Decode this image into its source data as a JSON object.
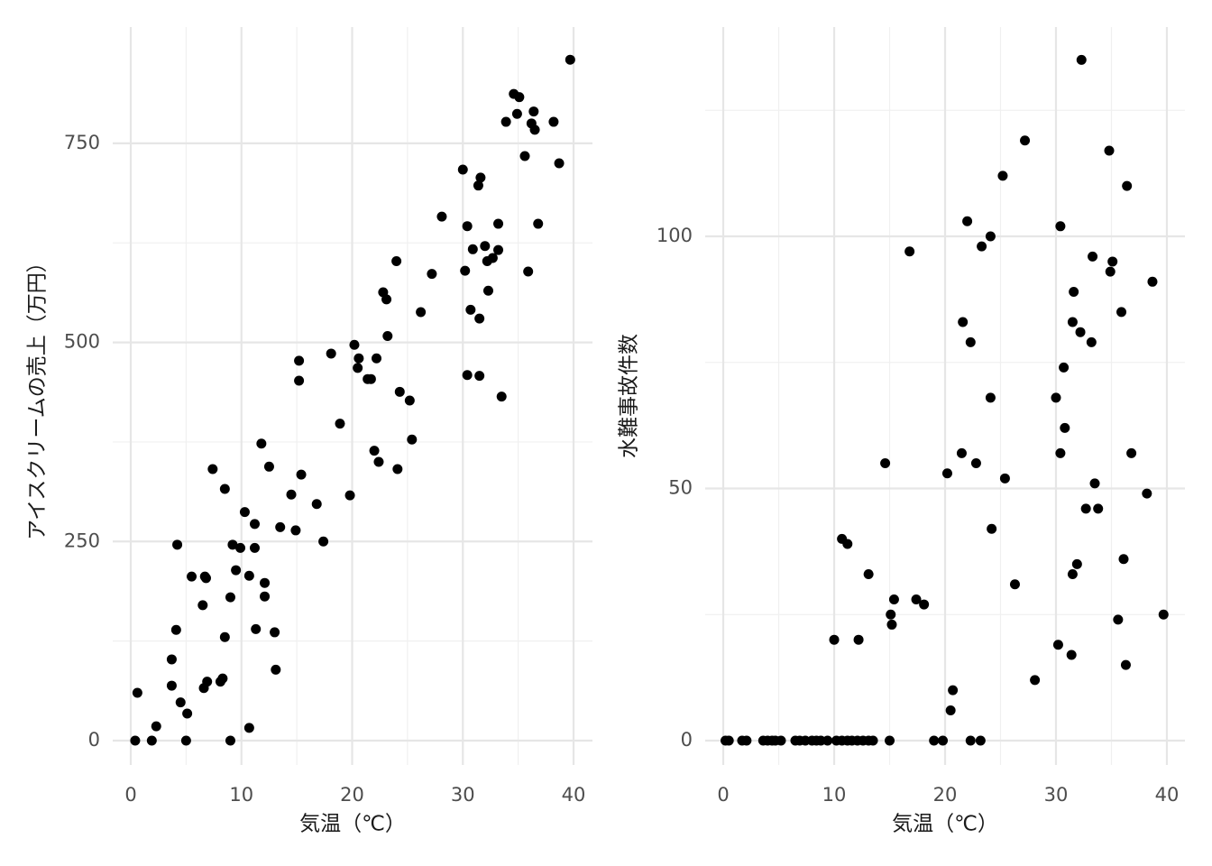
{
  "chart_data": [
    {
      "type": "scatter",
      "x_label": "気温（℃）",
      "y_label": "アイスクリームの売上（万円）",
      "color": "#000000",
      "grid": true,
      "xlim": [
        -1.63,
        41.71
      ],
      "ylim": [
        -30.6,
        896
      ],
      "xticks": [
        0,
        10,
        20,
        30,
        40
      ],
      "yticks": [
        0,
        250,
        500,
        750
      ],
      "xminor": [
        5,
        15,
        25,
        35
      ],
      "yminor": [
        125,
        375,
        625
      ],
      "x": [
        0.4,
        0.6,
        1.9,
        2.3,
        3.7,
        3.7,
        4.1,
        4.2,
        4.5,
        5.1,
        5.0,
        5.5,
        6.7,
        6.8,
        6.5,
        6.6,
        6.9,
        7.4,
        8.1,
        8.3,
        8.5,
        8.5,
        9.0,
        9.0,
        9.2,
        9.5,
        9.9,
        10.3,
        10.7,
        10.7,
        11.2,
        11.2,
        11.3,
        11.8,
        12.1,
        12.1,
        12.5,
        13.0,
        13.1,
        13.5,
        14.5,
        14.9,
        15.2,
        15.2,
        15.4,
        16.8,
        17.4,
        18.1,
        18.9,
        19.8,
        20.2,
        20.5,
        20.6,
        21.4,
        21.7,
        22.0,
        22.2,
        22.4,
        22.8,
        23.1,
        23.2,
        24.0,
        24.1,
        24.3,
        25.2,
        25.4,
        26.2,
        27.2,
        28.1,
        30.0,
        30.2,
        30.4,
        30.4,
        30.7,
        30.9,
        31.4,
        31.6,
        31.5,
        31.5,
        32.0,
        32.2,
        32.3,
        32.7,
        33.2,
        33.2,
        33.5,
        33.9,
        34.6,
        34.9,
        35.1,
        35.6,
        35.9,
        36.2,
        36.4,
        36.5,
        36.8,
        38.2,
        38.7,
        39.7
      ],
      "y": [
        0,
        60,
        0,
        18,
        102,
        69,
        139,
        246,
        48,
        34,
        0,
        206,
        206,
        204,
        170,
        66,
        74,
        341,
        74,
        78,
        316,
        130,
        0,
        180,
        246,
        214,
        242,
        287,
        16,
        207,
        242,
        272,
        140,
        373,
        198,
        181,
        344,
        136,
        89,
        268,
        309,
        264,
        452,
        477,
        334,
        297,
        250,
        486,
        398,
        308,
        497,
        468,
        480,
        454,
        454,
        364,
        480,
        350,
        563,
        554,
        508,
        602,
        341,
        438,
        427,
        378,
        538,
        586,
        658,
        717,
        590,
        646,
        459,
        541,
        617,
        697,
        707,
        458,
        530,
        621,
        602,
        565,
        606,
        649,
        616,
        432,
        777,
        812,
        787,
        808,
        734,
        589,
        775,
        790,
        767,
        649,
        777,
        725,
        855
      ]
    },
    {
      "type": "scatter",
      "x_label": "気温（℃）",
      "y_label": "水難事故件数",
      "color": "#000000",
      "grid": true,
      "xlim": [
        -1.63,
        41.63
      ],
      "ylim": [
        -4.83,
        141.5
      ],
      "xticks": [
        0,
        10,
        20,
        30,
        40
      ],
      "yticks": [
        0,
        50,
        100
      ],
      "xminor": [
        5,
        15,
        25,
        35
      ],
      "yminor": [
        25,
        75,
        125
      ],
      "x": [
        0.2,
        0.5,
        1.7,
        2.1,
        3.6,
        4.0,
        4.4,
        4.7,
        5.2,
        6.5,
        6.9,
        7.4,
        8.0,
        8.4,
        8.8,
        9.4,
        10.2,
        10.7,
        11.2,
        11.6,
        12.1,
        12.6,
        13.1,
        13.5,
        15.0,
        19.0,
        19.8,
        22.3,
        23.2,
        10.0,
        10.7,
        11.2,
        12.2,
        13.1,
        14.6,
        15.1,
        15.2,
        15.4,
        16.8,
        17.4,
        18.1,
        20.2,
        20.5,
        20.7,
        21.5,
        21.6,
        22.0,
        22.3,
        22.8,
        23.3,
        24.1,
        24.1,
        24.2,
        25.2,
        25.4,
        26.3,
        27.2,
        28.1,
        30.0,
        30.2,
        30.4,
        30.4,
        30.7,
        30.8,
        31.4,
        31.5,
        31.5,
        31.6,
        31.9,
        32.2,
        32.3,
        32.7,
        33.2,
        33.3,
        33.5,
        33.8,
        34.8,
        34.9,
        35.1,
        35.6,
        35.9,
        36.1,
        36.3,
        36.4,
        36.8,
        38.2,
        38.7,
        39.7
      ],
      "y": [
        0,
        0,
        0,
        0,
        0,
        0,
        0,
        0,
        0,
        0,
        0,
        0,
        0,
        0,
        0,
        0,
        0,
        0,
        0,
        0,
        0,
        0,
        0,
        0,
        0,
        0,
        0,
        0,
        0,
        20,
        40,
        39,
        20,
        33,
        55,
        25,
        23,
        28,
        97,
        28,
        27,
        53,
        6,
        10,
        57,
        83,
        103,
        79,
        55,
        98,
        100,
        68,
        42,
        112,
        52,
        31,
        119,
        12,
        68,
        19,
        57,
        102,
        74,
        62,
        17,
        33,
        83,
        89,
        35,
        81,
        135,
        46,
        79,
        96,
        51,
        46,
        117,
        93,
        95,
        24,
        85,
        36,
        15,
        110,
        57,
        49,
        91,
        25
      ]
    }
  ]
}
